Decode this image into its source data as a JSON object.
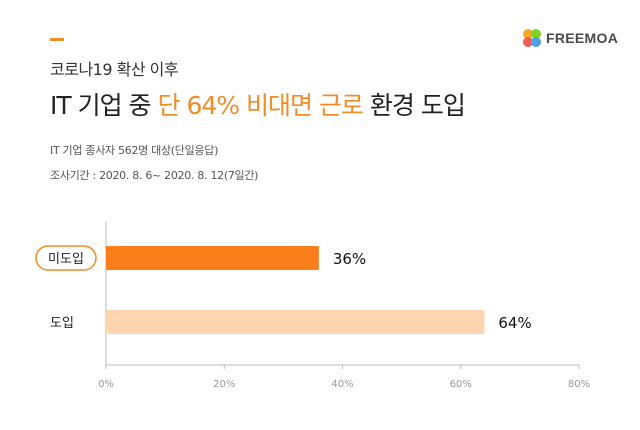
{
  "brand": {
    "name": "FREEMOA"
  },
  "header": {
    "subtitle": "코로나19 확산 이후",
    "title_parts": {
      "pre": "IT 기업 중 ",
      "highlight": "단 64% 비대면 근로",
      "post": " 환경 도입"
    },
    "note_sample": "IT 기업 종사자 562명 대상(단일응답)",
    "note_period": "조사기간 : 2020. 8. 6~ 2020. 8. 12(7일간)"
  },
  "colors": {
    "accent": "#f28c28",
    "bar_primary": "#fb7e1a",
    "bar_secondary": "#ffd5b0",
    "axis": "#999999"
  },
  "chart_data": {
    "type": "bar",
    "orientation": "horizontal",
    "categories": [
      "미도입",
      "도입"
    ],
    "values": [
      36,
      64
    ],
    "value_labels": [
      "36%",
      "64%"
    ],
    "xlim": [
      0,
      80
    ],
    "xticks": [
      "0%",
      "20%",
      "40%",
      "60%",
      "80%"
    ],
    "grid": false,
    "highlighted_category": "미도입"
  }
}
